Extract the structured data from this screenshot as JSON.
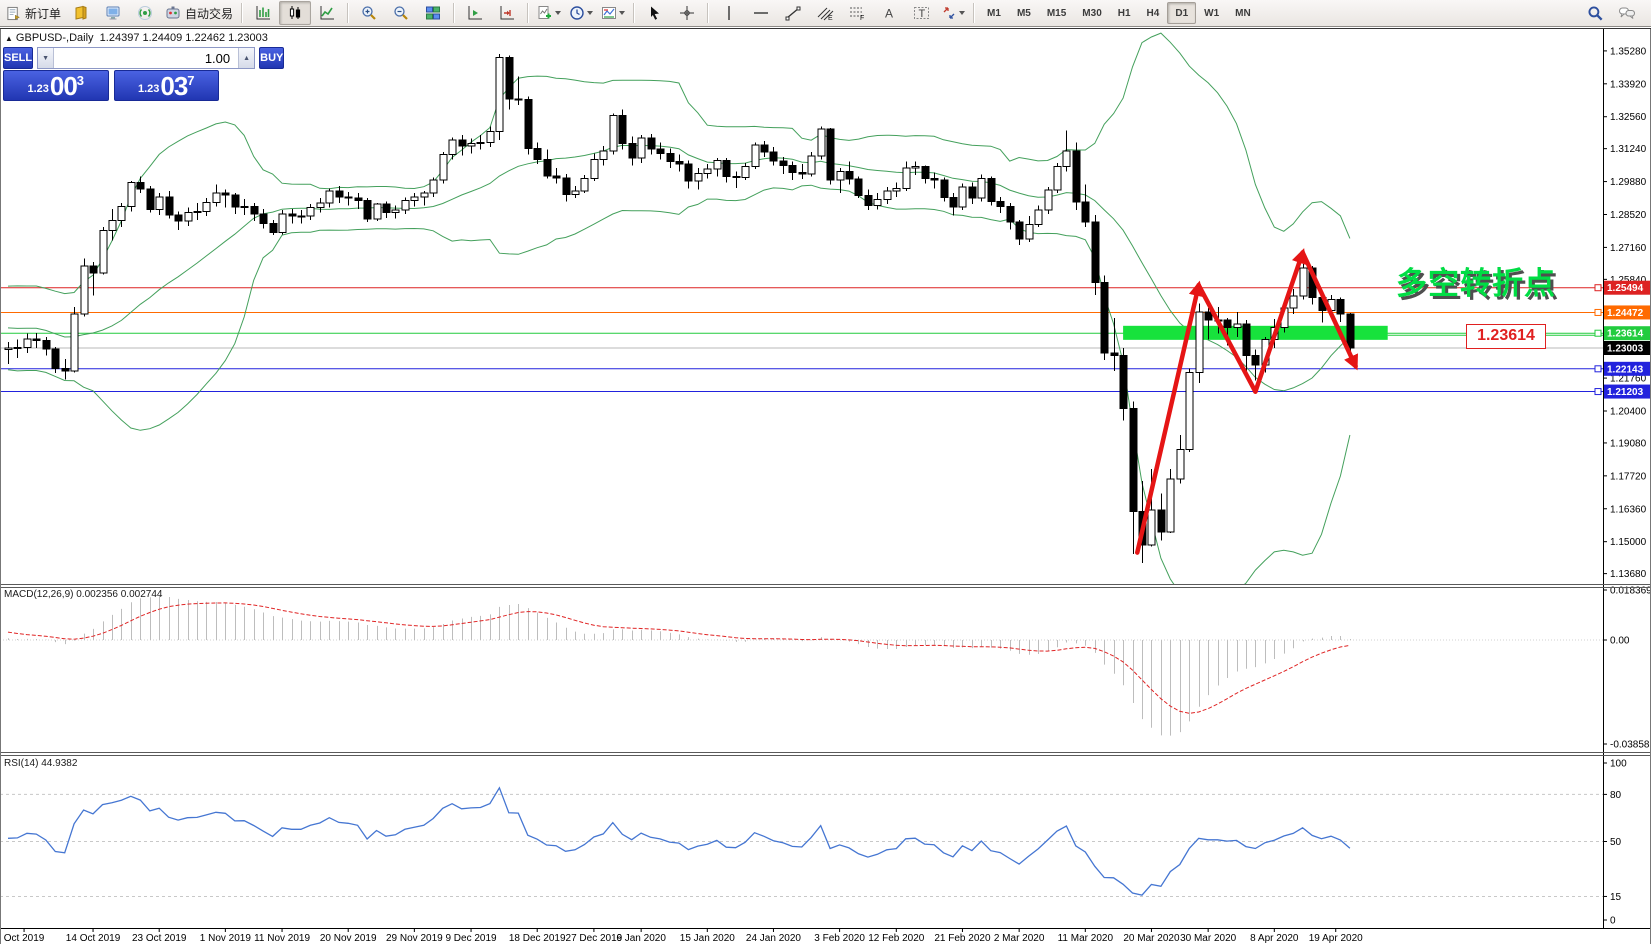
{
  "toolbar": {
    "new_order_label": "新订单",
    "auto_trading_label": "自动交易",
    "timeframes": [
      "M1",
      "M5",
      "M15",
      "M30",
      "H1",
      "H4",
      "D1",
      "W1",
      "MN"
    ],
    "active_timeframe": "D1",
    "tool_letter_channel": "E",
    "tool_letter_fibo": "F",
    "tool_letter_text": "A",
    "tool_letter_label": "T"
  },
  "quote_panel": {
    "symbol": "GBPUSD-,Daily",
    "ohlc_line": "1.24397 1.24409 1.22462 1.23003",
    "sell_label": "SELL",
    "buy_label": "BUY",
    "volume": "1.00",
    "sell_price_small": "1.23",
    "sell_price_big": "00",
    "sell_price_sup": "3",
    "buy_price_small": "1.23",
    "buy_price_big": "03",
    "buy_price_sup": "7"
  },
  "annotations": {
    "turning_point_text": "多空转折点",
    "level_box_text": "1.23614"
  },
  "indicators": {
    "macd_label": "MACD(12,26,9) 0.002356 0.002744",
    "rsi_label": "RSI(14) 44.9382",
    "macd_scale": [
      "0.018369",
      "0.00",
      "-0.038585"
    ],
    "rsi_scale": [
      "100",
      "80",
      "50",
      "15",
      "0"
    ]
  },
  "chart_data": {
    "type": "candlestick",
    "symbol": "GBPUSD",
    "timeframe": "Daily",
    "visible_start": 26,
    "ohlc": [
      [
        1.213,
        1.2185,
        1.2115,
        1.216
      ],
      [
        1.216,
        1.2225,
        1.214,
        1.22
      ],
      [
        1.22,
        1.227,
        1.2185,
        1.225
      ],
      [
        1.225,
        1.2265,
        1.218,
        1.221
      ],
      [
        1.221,
        1.23,
        1.2195,
        1.228
      ],
      [
        1.228,
        1.235,
        1.226,
        1.233
      ],
      [
        1.233,
        1.2345,
        1.2255,
        1.2288
      ],
      [
        1.2288,
        1.2365,
        1.227,
        1.2345
      ],
      [
        1.2345,
        1.236,
        1.229,
        1.232
      ],
      [
        1.232,
        1.236,
        1.2295,
        1.2335
      ],
      [
        1.2335,
        1.249,
        1.232,
        1.247
      ],
      [
        1.247,
        1.2525,
        1.244,
        1.25
      ],
      [
        1.25,
        1.252,
        1.2445,
        1.2475
      ],
      [
        1.2475,
        1.249,
        1.2385,
        1.241
      ],
      [
        1.241,
        1.2485,
        1.239,
        1.2465
      ],
      [
        1.2465,
        1.251,
        1.2435,
        1.248
      ],
      [
        1.248,
        1.256,
        1.246,
        1.2545
      ],
      [
        1.2545,
        1.2555,
        1.2455,
        1.248
      ],
      [
        1.248,
        1.2495,
        1.241,
        1.2435
      ],
      [
        1.2435,
        1.2445,
        1.2295,
        1.232
      ],
      [
        1.232,
        1.2345,
        1.2265,
        1.229
      ],
      [
        1.229,
        1.234,
        1.227,
        1.232
      ],
      [
        1.232,
        1.233,
        1.2245,
        1.227
      ],
      [
        1.227,
        1.231,
        1.225,
        1.229
      ],
      [
        1.229,
        1.2345,
        1.2275,
        1.232
      ],
      [
        1.232,
        1.233,
        1.226,
        1.2295
      ],
      [
        1.2295,
        1.2325,
        1.2235,
        1.23
      ],
      [
        1.23,
        1.2335,
        1.226,
        1.2303
      ],
      [
        1.2303,
        1.236,
        1.228,
        1.2337
      ],
      [
        1.2337,
        1.2362,
        1.23,
        1.2332
      ],
      [
        1.2332,
        1.2345,
        1.227,
        1.2297
      ],
      [
        1.2297,
        1.2305,
        1.2196,
        1.2216
      ],
      [
        1.2216,
        1.2255,
        1.217,
        1.2206
      ],
      [
        1.2206,
        1.247,
        1.22,
        1.2441
      ],
      [
        1.2441,
        1.267,
        1.243,
        1.264
      ],
      [
        1.264,
        1.2655,
        1.2518,
        1.261
      ],
      [
        1.261,
        1.28,
        1.2605,
        1.2785
      ],
      [
        1.2785,
        1.2875,
        1.2745,
        1.2827
      ],
      [
        1.2827,
        1.29,
        1.28,
        1.2885
      ],
      [
        1.2885,
        1.299,
        1.2865,
        1.2985
      ],
      [
        1.2985,
        1.301,
        1.294,
        1.2957
      ],
      [
        1.2957,
        1.297,
        1.286,
        1.2873
      ],
      [
        1.2873,
        1.294,
        1.285,
        1.2925
      ],
      [
        1.2925,
        1.295,
        1.2835,
        1.285
      ],
      [
        1.285,
        1.2865,
        1.2788,
        1.2825
      ],
      [
        1.2825,
        1.288,
        1.2805,
        1.2861
      ],
      [
        1.2861,
        1.29,
        1.283,
        1.2865
      ],
      [
        1.2865,
        1.292,
        1.2845,
        1.2902
      ],
      [
        1.2902,
        1.2975,
        1.2885,
        1.294
      ],
      [
        1.294,
        1.2955,
        1.288,
        1.2933
      ],
      [
        1.2933,
        1.294,
        1.2855,
        1.2882
      ],
      [
        1.2882,
        1.2915,
        1.285,
        1.2884
      ],
      [
        1.2884,
        1.29,
        1.2825,
        1.2853
      ],
      [
        1.2853,
        1.2875,
        1.2794,
        1.2815
      ],
      [
        1.2815,
        1.283,
        1.2768,
        1.2777
      ],
      [
        1.2777,
        1.287,
        1.277,
        1.2855
      ],
      [
        1.2855,
        1.2875,
        1.2815,
        1.2845
      ],
      [
        1.2845,
        1.287,
        1.2814,
        1.2845
      ],
      [
        1.2845,
        1.2895,
        1.283,
        1.288
      ],
      [
        1.288,
        1.292,
        1.286,
        1.29
      ],
      [
        1.29,
        1.296,
        1.288,
        1.295
      ],
      [
        1.295,
        1.297,
        1.29,
        1.2925
      ],
      [
        1.2925,
        1.2945,
        1.289,
        1.292
      ],
      [
        1.292,
        1.294,
        1.2875,
        1.291
      ],
      [
        1.291,
        1.292,
        1.282,
        1.2833
      ],
      [
        1.2833,
        1.29,
        1.2825,
        1.2895
      ],
      [
        1.2895,
        1.2905,
        1.2838,
        1.286
      ],
      [
        1.286,
        1.289,
        1.2835,
        1.287
      ],
      [
        1.287,
        1.2922,
        1.2855,
        1.291
      ],
      [
        1.291,
        1.294,
        1.2885,
        1.2925
      ],
      [
        1.2925,
        1.295,
        1.289,
        1.294
      ],
      [
        1.294,
        1.3005,
        1.2925,
        1.2995
      ],
      [
        1.2995,
        1.311,
        1.298,
        1.31
      ],
      [
        1.31,
        1.317,
        1.308,
        1.316
      ],
      [
        1.316,
        1.318,
        1.3095,
        1.3135
      ],
      [
        1.3135,
        1.3165,
        1.3105,
        1.3145
      ],
      [
        1.3145,
        1.318,
        1.312,
        1.315
      ],
      [
        1.315,
        1.3215,
        1.313,
        1.3195
      ],
      [
        1.3195,
        1.3515,
        1.316,
        1.35
      ],
      [
        1.35,
        1.351,
        1.3285,
        1.333
      ],
      [
        1.333,
        1.3422,
        1.3305,
        1.3328
      ],
      [
        1.3328,
        1.334,
        1.31,
        1.3125
      ],
      [
        1.3125,
        1.315,
        1.306,
        1.308
      ],
      [
        1.308,
        1.312,
        1.3,
        1.3012
      ],
      [
        1.3012,
        1.3045,
        1.298,
        1.3003
      ],
      [
        1.3003,
        1.302,
        1.2905,
        1.2935
      ],
      [
        1.2935,
        1.297,
        1.292,
        1.295
      ],
      [
        1.295,
        1.3015,
        1.294,
        1.3
      ],
      [
        1.3,
        1.3105,
        1.299,
        1.308
      ],
      [
        1.308,
        1.3135,
        1.3055,
        1.3115
      ],
      [
        1.3115,
        1.327,
        1.31,
        1.3262
      ],
      [
        1.3262,
        1.3285,
        1.312,
        1.3145
      ],
      [
        1.3145,
        1.3175,
        1.3055,
        1.3085
      ],
      [
        1.3085,
        1.318,
        1.3065,
        1.3168
      ],
      [
        1.3168,
        1.3185,
        1.31,
        1.3122
      ],
      [
        1.3122,
        1.315,
        1.308,
        1.3105
      ],
      [
        1.3105,
        1.3125,
        1.3045,
        1.307
      ],
      [
        1.307,
        1.31,
        1.303,
        1.306
      ],
      [
        1.306,
        1.3075,
        1.296,
        1.299
      ],
      [
        1.299,
        1.3045,
        1.2955,
        1.3022
      ],
      [
        1.3022,
        1.306,
        1.3,
        1.304
      ],
      [
        1.304,
        1.3085,
        1.3008,
        1.3075
      ],
      [
        1.3075,
        1.3085,
        1.2985,
        1.301
      ],
      [
        1.301,
        1.303,
        1.2962,
        1.3005
      ],
      [
        1.3005,
        1.3065,
        1.2995,
        1.305
      ],
      [
        1.305,
        1.315,
        1.304,
        1.314
      ],
      [
        1.314,
        1.3155,
        1.309,
        1.311
      ],
      [
        1.311,
        1.313,
        1.3055,
        1.3073
      ],
      [
        1.3073,
        1.309,
        1.302,
        1.3055
      ],
      [
        1.3055,
        1.307,
        1.2995,
        1.3025
      ],
      [
        1.3025,
        1.306,
        1.2998,
        1.302
      ],
      [
        1.302,
        1.311,
        1.301,
        1.3093
      ],
      [
        1.3093,
        1.3215,
        1.308,
        1.3205
      ],
      [
        1.3205,
        1.321,
        1.2975,
        1.2995
      ],
      [
        1.2995,
        1.3045,
        1.294,
        1.303
      ],
      [
        1.303,
        1.307,
        1.2975,
        1.2998
      ],
      [
        1.2998,
        1.301,
        1.292,
        1.293
      ],
      [
        1.293,
        1.2955,
        1.287,
        1.289
      ],
      [
        1.289,
        1.294,
        1.2872,
        1.2913
      ],
      [
        1.2913,
        1.2965,
        1.2895,
        1.295
      ],
      [
        1.295,
        1.2985,
        1.2925,
        1.296
      ],
      [
        1.296,
        1.307,
        1.295,
        1.3045
      ],
      [
        1.3045,
        1.307,
        1.3015,
        1.305
      ],
      [
        1.305,
        1.3055,
        1.298,
        1.3
      ],
      [
        1.3,
        1.3025,
        1.296,
        1.2995
      ],
      [
        1.2995,
        1.3005,
        1.2905,
        1.2922
      ],
      [
        1.2922,
        1.294,
        1.2848,
        1.2883
      ],
      [
        1.2883,
        1.298,
        1.287,
        1.2965
      ],
      [
        1.2965,
        1.2985,
        1.2895,
        1.292
      ],
      [
        1.292,
        1.3018,
        1.2905,
        1.3
      ],
      [
        1.3,
        1.301,
        1.289,
        1.2905
      ],
      [
        1.2905,
        1.2925,
        1.2858,
        1.2885
      ],
      [
        1.2885,
        1.29,
        1.279,
        1.282
      ],
      [
        1.282,
        1.283,
        1.2725,
        1.275
      ],
      [
        1.275,
        1.2845,
        1.2738,
        1.281
      ],
      [
        1.281,
        1.289,
        1.28,
        1.287
      ],
      [
        1.287,
        1.2965,
        1.2855,
        1.2953
      ],
      [
        1.2953,
        1.3065,
        1.294,
        1.305
      ],
      [
        1.305,
        1.32,
        1.303,
        1.3115
      ],
      [
        1.3115,
        1.315,
        1.287,
        1.2903
      ],
      [
        1.2903,
        1.2975,
        1.28,
        1.282
      ],
      [
        1.282,
        1.285,
        1.252,
        1.257
      ],
      [
        1.257,
        1.26,
        1.225,
        1.228
      ],
      [
        1.228,
        1.2425,
        1.2205,
        1.227
      ],
      [
        1.227,
        1.23,
        1.2,
        1.205
      ],
      [
        1.205,
        1.208,
        1.145,
        1.1625
      ],
      [
        1.1625,
        1.175,
        1.1412,
        1.1487
      ],
      [
        1.1487,
        1.18,
        1.148,
        1.163
      ],
      [
        1.163,
        1.17,
        1.1505,
        1.154
      ],
      [
        1.154,
        1.18,
        1.1535,
        1.176
      ],
      [
        1.176,
        1.194,
        1.174,
        1.188
      ],
      [
        1.188,
        1.2215,
        1.187,
        1.22
      ],
      [
        1.22,
        1.2485,
        1.2155,
        1.245
      ],
      [
        1.245,
        1.2465,
        1.2335,
        1.2415
      ],
      [
        1.2415,
        1.247,
        1.236,
        1.2415
      ],
      [
        1.2415,
        1.2425,
        1.231,
        1.2385
      ],
      [
        1.2385,
        1.245,
        1.2345,
        1.24
      ],
      [
        1.24,
        1.2415,
        1.2205,
        1.227
      ],
      [
        1.227,
        1.2295,
        1.2165,
        1.223
      ],
      [
        1.223,
        1.2345,
        1.22,
        1.2335
      ],
      [
        1.2335,
        1.242,
        1.23,
        1.2385
      ],
      [
        1.2385,
        1.2475,
        1.2365,
        1.2465
      ],
      [
        1.2465,
        1.2545,
        1.244,
        1.2515
      ],
      [
        1.2515,
        1.2648,
        1.25,
        1.263
      ],
      [
        1.263,
        1.264,
        1.248,
        1.251
      ],
      [
        1.251,
        1.2525,
        1.2405,
        1.2455
      ],
      [
        1.2455,
        1.252,
        1.2435,
        1.25
      ],
      [
        1.25,
        1.251,
        1.2408,
        1.244
      ],
      [
        1.244,
        1.2445,
        1.2247,
        1.23
      ]
    ],
    "y_ticks": [
      "1.35280",
      "1.33920",
      "1.32560",
      "1.31240",
      "1.29880",
      "1.28520",
      "1.27160",
      "1.25840",
      "1.24480",
      "1.23120",
      "1.21760",
      "1.20400",
      "1.19080",
      "1.17720",
      "1.16360",
      "1.15000",
      "1.13680"
    ],
    "levels": [
      {
        "price": 1.25494,
        "color": "#dd2222"
      },
      {
        "price": 1.24472,
        "color": "#ff6a00"
      },
      {
        "price": 1.23614,
        "color": "#22cc3e"
      },
      {
        "price": 1.22143,
        "color": "#2222dd"
      },
      {
        "price": 1.21203,
        "color": "#2222dd"
      }
    ],
    "current_price": {
      "price": 1.23003,
      "line_color": "#b8b8b8",
      "label_bg": "#000000"
    },
    "support_zone": {
      "price_high": 1.2392,
      "price_low": 1.2334,
      "i_from": 118,
      "i_to": 146,
      "color": "#17e23c"
    },
    "zigzag": {
      "color": "#e51515",
      "points": [
        [
          119.5,
          1.1455
        ],
        [
          126,
          1.256
        ],
        [
          132,
          1.212
        ],
        [
          137,
          1.2695
        ],
        [
          142.6,
          1.2225
        ]
      ]
    },
    "bollinger": {
      "period": 20,
      "deviation": 2,
      "color": "#44a05c"
    },
    "macd": {
      "fast": 12,
      "slow": 26,
      "signal": 9,
      "hist_color": "#bdbdbd",
      "signal_color": "#e02525"
    },
    "rsi": {
      "period": 14,
      "color": "#4576d2",
      "levels": [
        80,
        50,
        15
      ]
    },
    "x_axis_dates": [
      [
        "Oct 2019",
        1.7
      ],
      [
        "14 Oct 2019",
        9
      ],
      [
        "23 Oct 2019",
        16
      ],
      [
        "1 Nov 2019",
        23
      ],
      [
        "11 Nov 2019",
        29
      ],
      [
        "20 Nov 2019",
        36
      ],
      [
        "29 Nov 2019",
        43
      ],
      [
        "9 Dec 2019",
        49
      ],
      [
        "18 Dec 2019",
        56
      ],
      [
        "27 Dec 2019",
        62
      ],
      [
        "6 Jan 2020",
        67
      ],
      [
        "15 Jan 2020",
        74
      ],
      [
        "24 Jan 2020",
        81
      ],
      [
        "3 Feb 2020",
        88
      ],
      [
        "12 Feb 2020",
        94
      ],
      [
        "21 Feb 2020",
        101
      ],
      [
        "2 Mar 2020",
        107
      ],
      [
        "11 Mar 2020",
        114
      ],
      [
        "20 Mar 2020",
        121
      ],
      [
        "30 Mar 2020",
        127
      ],
      [
        "8 Apr 2020",
        134
      ],
      [
        "19 Apr 2020",
        140.5
      ]
    ]
  }
}
